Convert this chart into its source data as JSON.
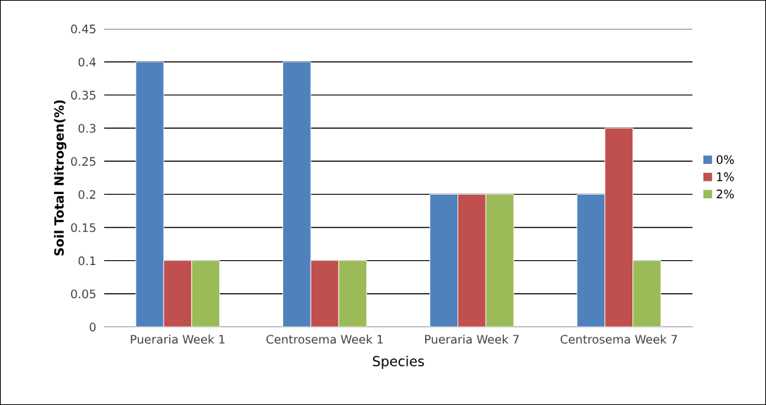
{
  "chart_data": {
    "type": "bar",
    "xlabel": "Species",
    "ylabel": "Soil Total Nitrogen(%)",
    "categories": [
      "Pueraria Week 1",
      "Centrosema Week 1",
      "Pueraria Week 7",
      "Centrosema Week 7"
    ],
    "series": [
      {
        "name": "0%",
        "color": "#4f81bd",
        "values": [
          0.4,
          0.4,
          0.2,
          0.2
        ]
      },
      {
        "name": "1%",
        "color": "#c0504d",
        "values": [
          0.1,
          0.1,
          0.2,
          0.3
        ]
      },
      {
        "name": "2%",
        "color": "#9bbb59",
        "values": [
          0.1,
          0.1,
          0.2,
          0.1
        ]
      }
    ],
    "ylim": [
      0,
      0.45
    ],
    "yticks": [
      0,
      0.05,
      0.1,
      0.15,
      0.2,
      0.25,
      0.3,
      0.35,
      0.4,
      0.45
    ],
    "grid": "y",
    "legend": "right"
  }
}
